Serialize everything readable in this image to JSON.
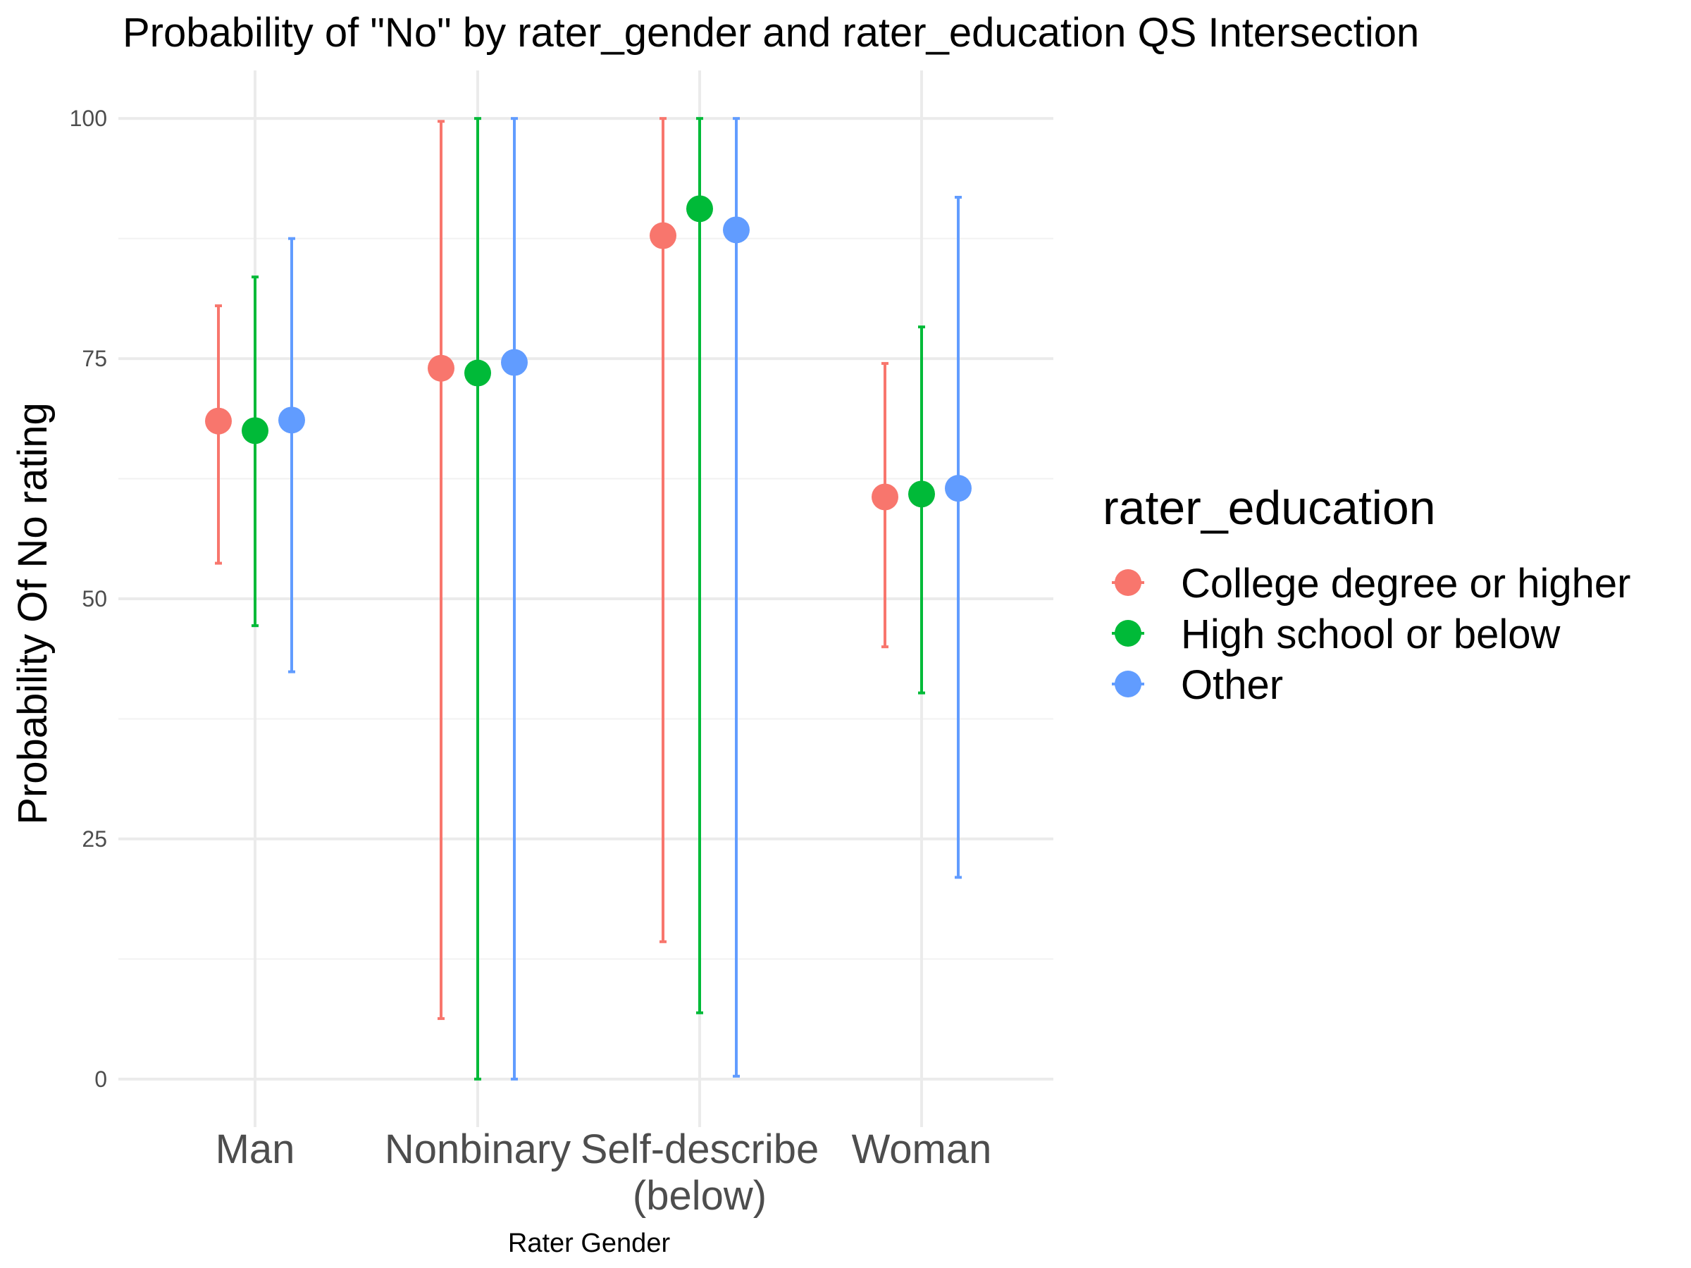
{
  "chart_data": {
    "type": "scatter",
    "title": "Probability of \"No\" by rater_gender and  rater_education  QS Intersection",
    "xlabel": "Rater Gender",
    "ylabel": "Probability Of No rating",
    "categories": [
      "Man",
      "Nonbinary",
      "Self-describe\n(below)",
      "Woman"
    ],
    "ylim": [
      -5,
      105
    ],
    "yticks": [
      0,
      25,
      50,
      75,
      100
    ],
    "grid": true,
    "legend": {
      "title": "rater_education",
      "placement": "right"
    },
    "series": [
      {
        "name": "College degree or higher",
        "color": "#F8766D",
        "values": [
          68.5,
          74.0,
          87.8,
          60.6
        ],
        "lower": [
          53.7,
          6.3,
          14.3,
          45.0
        ],
        "upper": [
          80.5,
          99.7,
          100.0,
          74.5
        ]
      },
      {
        "name": "High school or below",
        "color": "#00BA38",
        "values": [
          67.5,
          73.5,
          90.6,
          60.9
        ],
        "lower": [
          47.2,
          0.0,
          6.9,
          40.2
        ],
        "upper": [
          83.5,
          100.0,
          100.0,
          78.3
        ]
      },
      {
        "name": "Other",
        "color": "#619CFF",
        "values": [
          68.6,
          74.6,
          88.4,
          61.5
        ],
        "lower": [
          42.4,
          0.0,
          0.3,
          21.0
        ],
        "upper": [
          87.5,
          100.0,
          100.0,
          91.8
        ]
      }
    ]
  }
}
